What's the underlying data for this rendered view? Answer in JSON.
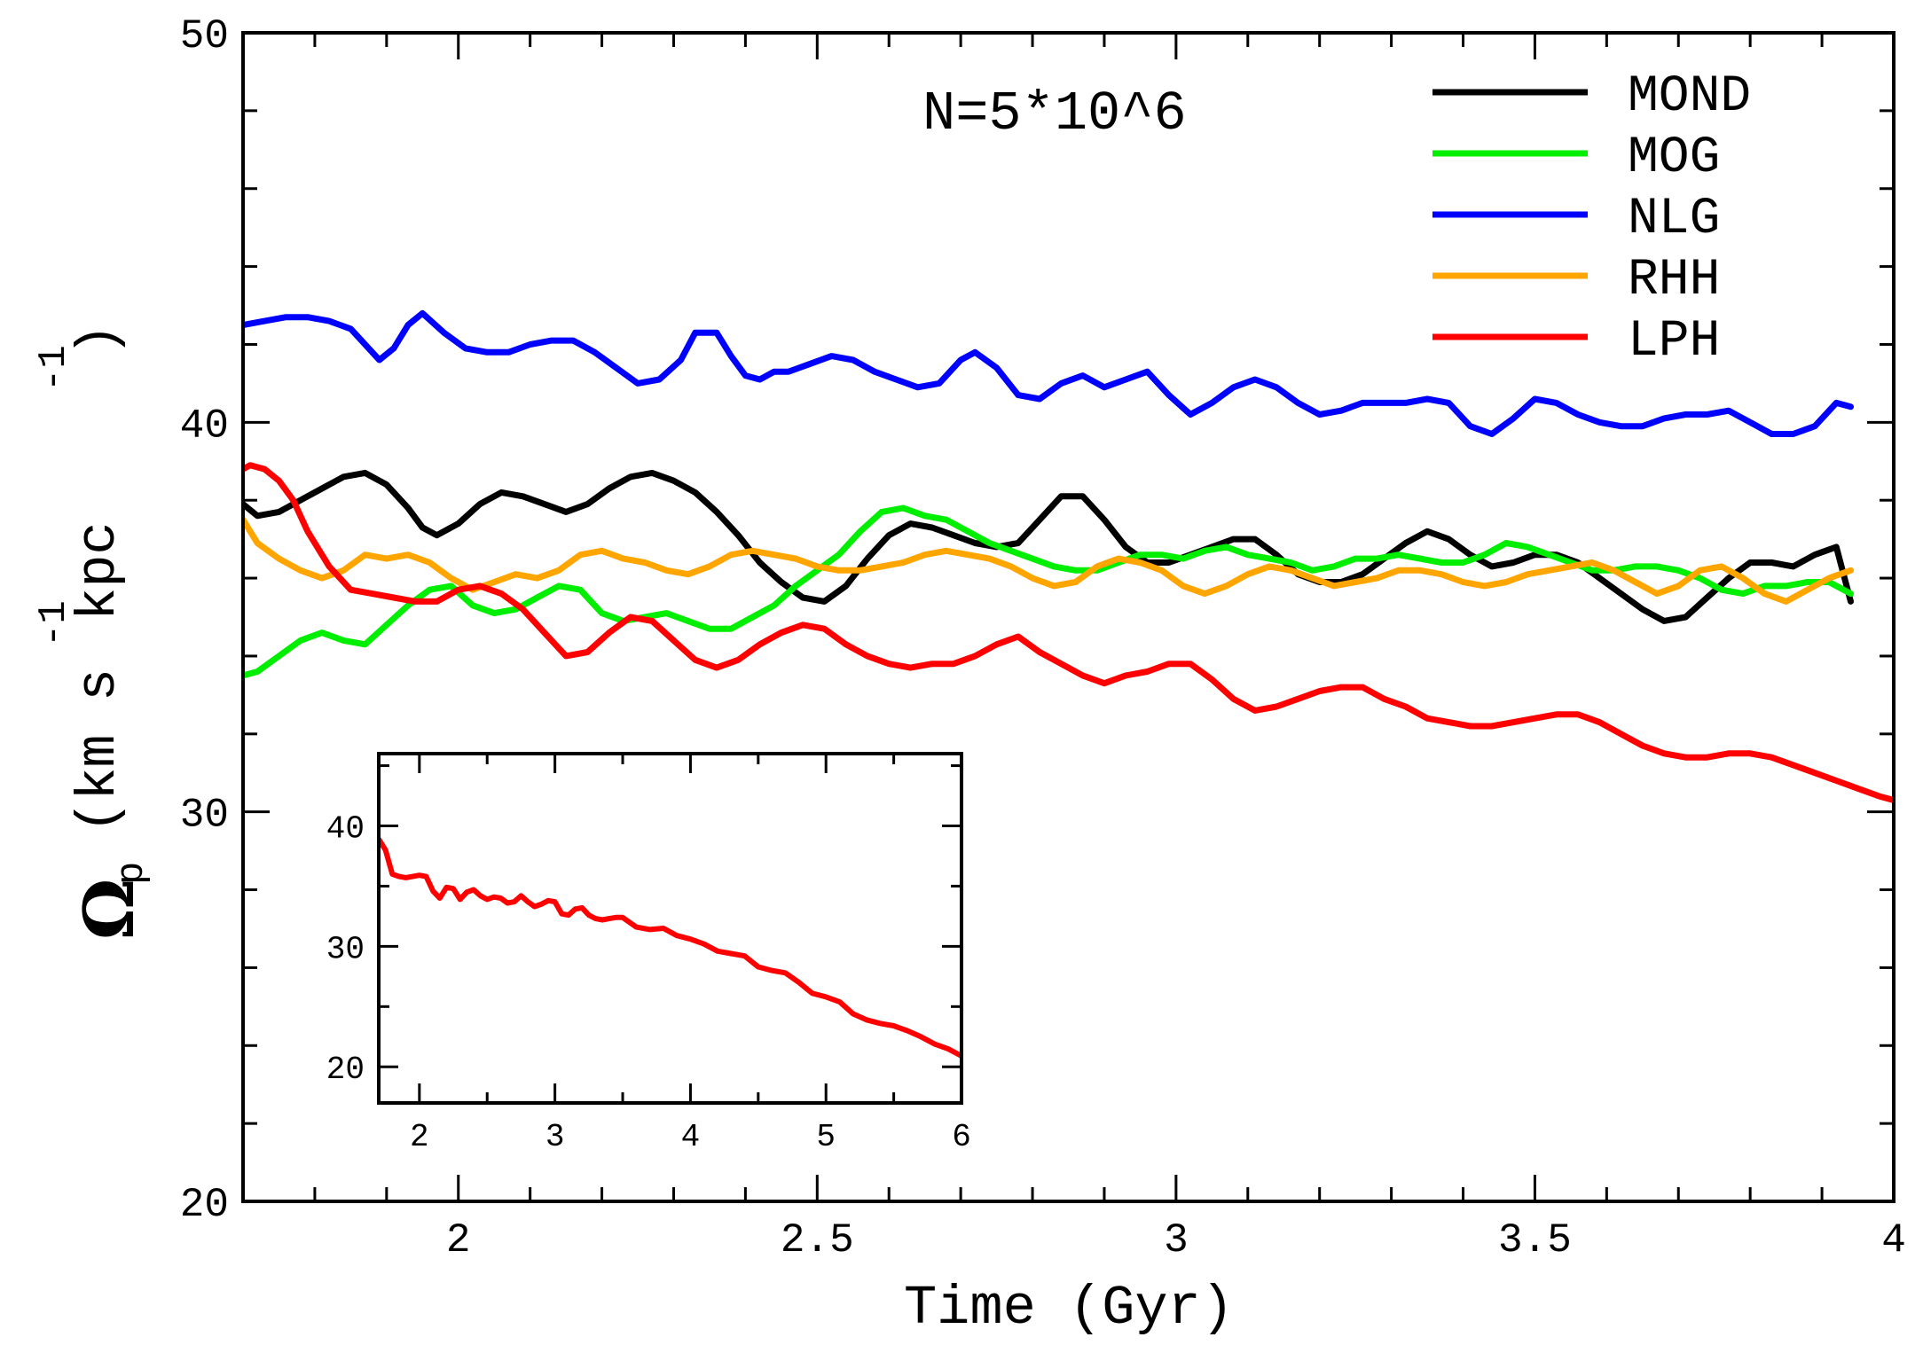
{
  "chart_data": [
    {
      "type": "line",
      "title": "",
      "annotation": "N=5*10^6",
      "xlabel": "Time (Gyr)",
      "ylabel": {
        "symbol": "Ω",
        "subscript": "p",
        "units_a": "(km s",
        "exp1": "-1",
        "units_b": " kpc",
        "exp2": "-1",
        "close": ")"
      },
      "xlim": [
        1.7,
        4.0
      ],
      "ylim": [
        20,
        50
      ],
      "x_ticks": [
        2,
        2.5,
        3,
        3.5,
        4
      ],
      "x_tick_labels": [
        "2",
        "2.5",
        "3",
        "3.5",
        "4"
      ],
      "y_ticks": [
        20,
        30,
        40,
        50
      ],
      "y_tick_labels": [
        "20",
        "30",
        "40",
        "50"
      ],
      "grid": false,
      "legend_position": "top-right",
      "series": [
        {
          "name": "MOND",
          "color": "#000000",
          "x": [
            1.7,
            1.72,
            1.75,
            1.78,
            1.81,
            1.84,
            1.87,
            1.9,
            1.93,
            1.95,
            1.97,
            2.0,
            2.03,
            2.06,
            2.09,
            2.12,
            2.15,
            2.18,
            2.21,
            2.24,
            2.27,
            2.3,
            2.33,
            2.36,
            2.39,
            2.42,
            2.45,
            2.48,
            2.51,
            2.54,
            2.57,
            2.6,
            2.63,
            2.66,
            2.69,
            2.72,
            2.75,
            2.78,
            2.81,
            2.84,
            2.87,
            2.9,
            2.93,
            2.96,
            2.99,
            3.02,
            3.05,
            3.08,
            3.11,
            3.14,
            3.17,
            3.2,
            3.23,
            3.26,
            3.29,
            3.32,
            3.35,
            3.38,
            3.41,
            3.44,
            3.47,
            3.5,
            3.53,
            3.56,
            3.59,
            3.62,
            3.65,
            3.68,
            3.71,
            3.74,
            3.77,
            3.8,
            3.83,
            3.86,
            3.89,
            3.92,
            3.94
          ],
          "values": [
            37.9,
            37.6,
            37.7,
            38.0,
            38.3,
            38.6,
            38.7,
            38.4,
            37.8,
            37.3,
            37.1,
            37.4,
            37.9,
            38.2,
            38.1,
            37.9,
            37.7,
            37.9,
            38.3,
            38.6,
            38.7,
            38.5,
            38.2,
            37.7,
            37.1,
            36.4,
            35.9,
            35.5,
            35.4,
            35.8,
            36.5,
            37.1,
            37.4,
            37.3,
            37.1,
            36.9,
            36.8,
            36.9,
            37.5,
            38.1,
            38.1,
            37.5,
            36.8,
            36.4,
            36.4,
            36.6,
            36.8,
            37.0,
            37.0,
            36.6,
            36.1,
            35.9,
            35.9,
            36.1,
            36.5,
            36.9,
            37.2,
            37.0,
            36.6,
            36.3,
            36.4,
            36.6,
            36.6,
            36.4,
            36.0,
            35.6,
            35.2,
            34.9,
            35.0,
            35.5,
            36.0,
            36.4,
            36.4,
            36.3,
            36.6,
            36.8,
            35.4
          ]
        },
        {
          "name": "MOG",
          "color": "#00ee00",
          "x": [
            1.7,
            1.72,
            1.75,
            1.78,
            1.81,
            1.84,
            1.87,
            1.9,
            1.93,
            1.96,
            1.99,
            2.02,
            2.05,
            2.08,
            2.11,
            2.14,
            2.17,
            2.2,
            2.23,
            2.26,
            2.29,
            2.32,
            2.35,
            2.38,
            2.41,
            2.44,
            2.47,
            2.5,
            2.53,
            2.56,
            2.59,
            2.62,
            2.65,
            2.68,
            2.71,
            2.74,
            2.77,
            2.8,
            2.83,
            2.86,
            2.89,
            2.92,
            2.95,
            2.98,
            3.01,
            3.04,
            3.07,
            3.1,
            3.13,
            3.16,
            3.19,
            3.22,
            3.25,
            3.28,
            3.31,
            3.34,
            3.37,
            3.4,
            3.43,
            3.46,
            3.49,
            3.52,
            3.55,
            3.58,
            3.61,
            3.64,
            3.67,
            3.7,
            3.73,
            3.76,
            3.79,
            3.82,
            3.85,
            3.88,
            3.91,
            3.94
          ],
          "values": [
            33.5,
            33.6,
            34.0,
            34.4,
            34.6,
            34.4,
            34.3,
            34.8,
            35.3,
            35.7,
            35.8,
            35.3,
            35.1,
            35.2,
            35.5,
            35.8,
            35.7,
            35.1,
            34.9,
            35.0,
            35.1,
            34.9,
            34.7,
            34.7,
            35.0,
            35.3,
            35.8,
            36.2,
            36.6,
            37.2,
            37.7,
            37.8,
            37.6,
            37.5,
            37.2,
            36.9,
            36.7,
            36.5,
            36.3,
            36.2,
            36.2,
            36.4,
            36.6,
            36.6,
            36.5,
            36.7,
            36.8,
            36.6,
            36.5,
            36.4,
            36.2,
            36.3,
            36.5,
            36.5,
            36.6,
            36.5,
            36.4,
            36.4,
            36.6,
            36.9,
            36.8,
            36.6,
            36.4,
            36.2,
            36.2,
            36.3,
            36.3,
            36.2,
            36.0,
            35.7,
            35.6,
            35.8,
            35.8,
            35.9,
            35.9,
            35.6
          ]
        },
        {
          "name": "NLG",
          "color": "#0000ff",
          "x": [
            1.7,
            1.73,
            1.76,
            1.79,
            1.82,
            1.85,
            1.87,
            1.89,
            1.91,
            1.93,
            1.95,
            1.98,
            2.01,
            2.04,
            2.07,
            2.1,
            2.13,
            2.16,
            2.19,
            2.22,
            2.25,
            2.28,
            2.31,
            2.33,
            2.36,
            2.38,
            2.4,
            2.42,
            2.44,
            2.46,
            2.49,
            2.52,
            2.55,
            2.58,
            2.61,
            2.64,
            2.67,
            2.7,
            2.72,
            2.75,
            2.78,
            2.81,
            2.84,
            2.87,
            2.9,
            2.93,
            2.96,
            2.99,
            3.02,
            3.05,
            3.08,
            3.11,
            3.14,
            3.17,
            3.2,
            3.23,
            3.26,
            3.29,
            3.32,
            3.35,
            3.38,
            3.41,
            3.44,
            3.47,
            3.5,
            3.53,
            3.56,
            3.59,
            3.62,
            3.65,
            3.68,
            3.71,
            3.74,
            3.77,
            3.8,
            3.83,
            3.86,
            3.89,
            3.92,
            3.94
          ],
          "values": [
            42.5,
            42.6,
            42.7,
            42.7,
            42.6,
            42.4,
            42.0,
            41.6,
            41.9,
            42.5,
            42.8,
            42.3,
            41.9,
            41.8,
            41.8,
            42.0,
            42.1,
            42.1,
            41.8,
            41.4,
            41.0,
            41.1,
            41.6,
            42.3,
            42.3,
            41.7,
            41.2,
            41.1,
            41.3,
            41.3,
            41.5,
            41.7,
            41.6,
            41.3,
            41.1,
            40.9,
            41.0,
            41.6,
            41.8,
            41.4,
            40.7,
            40.6,
            41.0,
            41.2,
            40.9,
            41.1,
            41.3,
            40.7,
            40.2,
            40.5,
            40.9,
            41.1,
            40.9,
            40.5,
            40.2,
            40.3,
            40.5,
            40.5,
            40.5,
            40.6,
            40.5,
            39.9,
            39.7,
            40.1,
            40.6,
            40.5,
            40.2,
            40.0,
            39.9,
            39.9,
            40.1,
            40.2,
            40.2,
            40.3,
            40.0,
            39.7,
            39.7,
            39.9,
            40.5,
            40.4
          ]
        },
        {
          "name": "RHH",
          "color": "#ffa500",
          "x": [
            1.7,
            1.72,
            1.75,
            1.78,
            1.81,
            1.84,
            1.87,
            1.9,
            1.93,
            1.96,
            1.99,
            2.02,
            2.05,
            2.08,
            2.11,
            2.14,
            2.17,
            2.2,
            2.23,
            2.26,
            2.29,
            2.32,
            2.35,
            2.38,
            2.41,
            2.44,
            2.47,
            2.5,
            2.53,
            2.56,
            2.59,
            2.62,
            2.65,
            2.68,
            2.71,
            2.74,
            2.77,
            2.8,
            2.83,
            2.86,
            2.89,
            2.92,
            2.95,
            2.98,
            3.01,
            3.04,
            3.07,
            3.1,
            3.13,
            3.16,
            3.19,
            3.22,
            3.25,
            3.28,
            3.31,
            3.34,
            3.37,
            3.4,
            3.43,
            3.46,
            3.49,
            3.52,
            3.55,
            3.58,
            3.61,
            3.64,
            3.67,
            3.7,
            3.73,
            3.76,
            3.79,
            3.82,
            3.85,
            3.88,
            3.91,
            3.94
          ],
          "values": [
            37.5,
            36.9,
            36.5,
            36.2,
            36.0,
            36.2,
            36.6,
            36.5,
            36.6,
            36.4,
            36.0,
            35.7,
            35.9,
            36.1,
            36.0,
            36.2,
            36.6,
            36.7,
            36.5,
            36.4,
            36.2,
            36.1,
            36.3,
            36.6,
            36.7,
            36.6,
            36.5,
            36.3,
            36.2,
            36.2,
            36.3,
            36.4,
            36.6,
            36.7,
            36.6,
            36.5,
            36.3,
            36.0,
            35.8,
            35.9,
            36.3,
            36.5,
            36.4,
            36.2,
            35.8,
            35.6,
            35.8,
            36.1,
            36.3,
            36.2,
            36.0,
            35.8,
            35.9,
            36.0,
            36.2,
            36.2,
            36.1,
            35.9,
            35.8,
            35.9,
            36.1,
            36.2,
            36.3,
            36.4,
            36.2,
            35.9,
            35.6,
            35.8,
            36.2,
            36.3,
            36.0,
            35.6,
            35.4,
            35.7,
            36.0,
            36.2
          ]
        },
        {
          "name": "LPH",
          "color": "#ff0000",
          "x": [
            1.7,
            1.71,
            1.73,
            1.75,
            1.77,
            1.79,
            1.82,
            1.85,
            1.88,
            1.91,
            1.94,
            1.97,
            2.0,
            2.03,
            2.06,
            2.09,
            2.12,
            2.15,
            2.18,
            2.21,
            2.24,
            2.27,
            2.3,
            2.33,
            2.36,
            2.39,
            2.42,
            2.45,
            2.48,
            2.51,
            2.54,
            2.57,
            2.6,
            2.63,
            2.66,
            2.69,
            2.72,
            2.75,
            2.78,
            2.81,
            2.84,
            2.87,
            2.9,
            2.93,
            2.96,
            2.99,
            3.02,
            3.05,
            3.08,
            3.11,
            3.14,
            3.17,
            3.2,
            3.23,
            3.26,
            3.29,
            3.32,
            3.35,
            3.38,
            3.41,
            3.44,
            3.47,
            3.5,
            3.53,
            3.56,
            3.59,
            3.62,
            3.65,
            3.68,
            3.71,
            3.74,
            3.77,
            3.8,
            3.83,
            3.86,
            3.89,
            3.92,
            3.95,
            3.98,
            4.0
          ],
          "values": [
            38.8,
            38.9,
            38.8,
            38.5,
            38.0,
            37.2,
            36.3,
            35.7,
            35.6,
            35.5,
            35.4,
            35.4,
            35.7,
            35.8,
            35.6,
            35.2,
            34.6,
            34.0,
            34.1,
            34.6,
            35.0,
            34.9,
            34.4,
            33.9,
            33.7,
            33.9,
            34.3,
            34.6,
            34.8,
            34.7,
            34.3,
            34.0,
            33.8,
            33.7,
            33.8,
            33.8,
            34.0,
            34.3,
            34.5,
            34.1,
            33.8,
            33.5,
            33.3,
            33.5,
            33.6,
            33.8,
            33.8,
            33.4,
            32.9,
            32.6,
            32.7,
            32.9,
            33.1,
            33.2,
            33.2,
            32.9,
            32.7,
            32.4,
            32.3,
            32.2,
            32.2,
            32.3,
            32.4,
            32.5,
            32.5,
            32.3,
            32.0,
            31.7,
            31.5,
            31.4,
            31.4,
            31.5,
            31.5,
            31.4,
            31.2,
            31.0,
            30.8,
            30.6,
            30.4,
            30.3
          ]
        }
      ]
    },
    {
      "type": "line",
      "title": "",
      "position": "inset, lower-left",
      "xlim": [
        1.7,
        6.0
      ],
      "ylim": [
        17,
        46
      ],
      "x_ticks": [
        2,
        3,
        4,
        5,
        6
      ],
      "x_tick_labels": [
        "2",
        "3",
        "4",
        "5",
        "6"
      ],
      "y_ticks": [
        20,
        30,
        40
      ],
      "y_tick_labels": [
        "20",
        "30",
        "40"
      ],
      "grid": false,
      "series": [
        {
          "name": "LPH",
          "color": "#ff0000",
          "x": [
            1.7,
            1.75,
            1.8,
            1.85,
            1.9,
            1.95,
            2.0,
            2.05,
            2.1,
            2.15,
            2.2,
            2.25,
            2.3,
            2.35,
            2.4,
            2.45,
            2.5,
            2.55,
            2.6,
            2.65,
            2.7,
            2.75,
            2.8,
            2.85,
            2.9,
            2.95,
            3.0,
            3.05,
            3.1,
            3.15,
            3.2,
            3.25,
            3.3,
            3.35,
            3.4,
            3.45,
            3.5,
            3.6,
            3.7,
            3.8,
            3.9,
            4.0,
            4.1,
            4.2,
            4.3,
            4.4,
            4.5,
            4.6,
            4.7,
            4.8,
            4.9,
            5.0,
            5.1,
            5.2,
            5.3,
            5.4,
            5.5,
            5.6,
            5.7,
            5.8,
            5.9,
            6.0
          ],
          "values": [
            38.9,
            38.0,
            36.0,
            35.8,
            35.7,
            35.8,
            35.9,
            35.8,
            34.6,
            34.0,
            34.9,
            34.8,
            33.9,
            34.5,
            34.7,
            34.2,
            33.9,
            34.1,
            34.0,
            33.6,
            33.7,
            34.2,
            33.7,
            33.3,
            33.5,
            33.8,
            33.7,
            32.7,
            32.6,
            33.1,
            33.2,
            32.6,
            32.3,
            32.2,
            32.3,
            32.4,
            32.4,
            31.6,
            31.4,
            31.5,
            30.9,
            30.6,
            30.2,
            29.6,
            29.4,
            29.2,
            28.3,
            28.0,
            27.8,
            27.0,
            26.1,
            25.8,
            25.4,
            24.4,
            23.9,
            23.6,
            23.4,
            23.0,
            22.5,
            21.9,
            21.5,
            20.9
          ]
        }
      ]
    }
  ]
}
